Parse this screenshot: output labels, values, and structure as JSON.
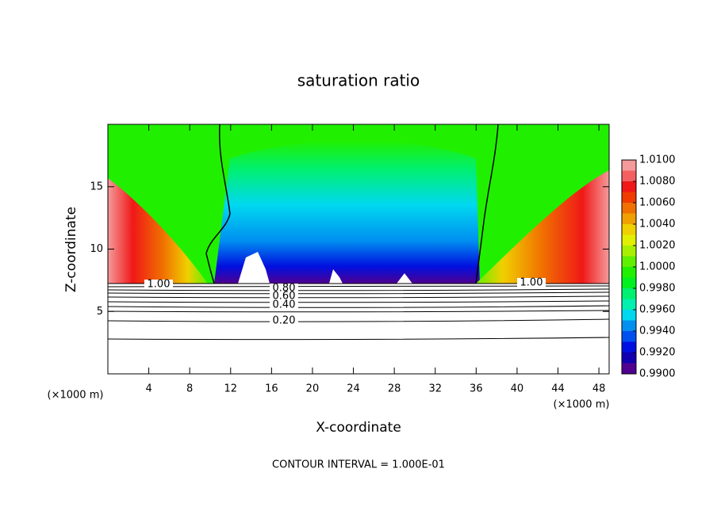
{
  "chart_data": {
    "type": "contour",
    "title": "saturation ratio",
    "x_label": "X-coordinate",
    "y_label": "Z-coordinate",
    "x_unit": "(×1000 m)",
    "y_unit": "(×1000 m)",
    "footnote": "CONTOUR INTERVAL = 1.000E-01",
    "xlim": [
      0,
      49
    ],
    "ylim": [
      0,
      20
    ],
    "xticks": [
      4,
      8,
      12,
      16,
      20,
      24,
      28,
      32,
      36,
      40,
      44,
      48
    ],
    "yticks": [
      5,
      10,
      15
    ],
    "contour_labels": [
      "1.00",
      "0.80",
      "0.60",
      "0.40",
      "0.20",
      "1.00"
    ],
    "colorbar": {
      "lim": [
        0.99,
        1.01
      ],
      "ticks": [
        {
          "value": 1.01,
          "label": "1.0100"
        },
        {
          "value": 1.008,
          "label": "1.0080"
        },
        {
          "value": 1.006,
          "label": "1.0060"
        },
        {
          "value": 1.004,
          "label": "1.0040"
        },
        {
          "value": 1.002,
          "label": "1.0020"
        },
        {
          "value": 1.0,
          "label": "1.0000"
        },
        {
          "value": 0.998,
          "label": "0.9980"
        },
        {
          "value": 0.996,
          "label": "0.9960"
        },
        {
          "value": 0.994,
          "label": "0.9940"
        },
        {
          "value": 0.992,
          "label": "0.9920"
        },
        {
          "value": 0.99,
          "label": "0.9900"
        }
      ],
      "colors": [
        "#f49a9a",
        "#f46060",
        "#f01818",
        "#f03c00",
        "#f07000",
        "#f0a000",
        "#f0d000",
        "#e0f000",
        "#a8f000",
        "#60f000",
        "#20f000",
        "#00f020",
        "#00f070",
        "#00f0b0",
        "#00d8f0",
        "#0090f0",
        "#0050f0",
        "#0010e0",
        "#1000b0",
        "#500090"
      ]
    }
  }
}
